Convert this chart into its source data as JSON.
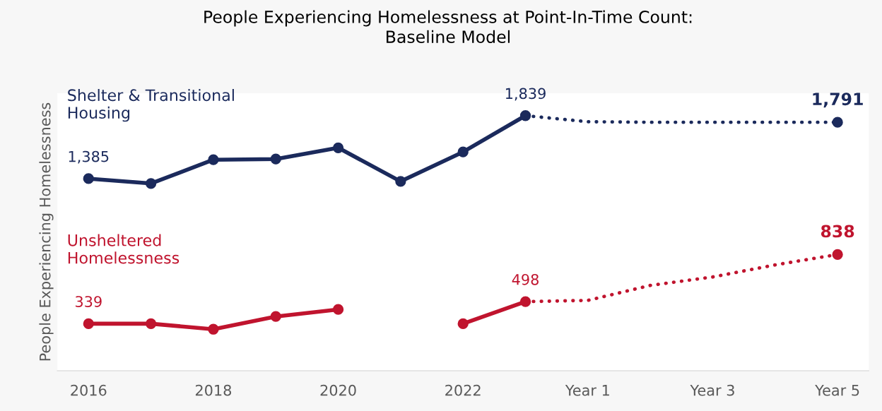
{
  "chart_data": {
    "type": "line",
    "title": "People Experiencing Homelessness at Point-In-Time Count:\nBaseline Model",
    "ylabel": "People Experiencing Homelessness",
    "categories": [
      "2016",
      null,
      "2018",
      null,
      "2020",
      null,
      "2022",
      null,
      "Year 1",
      null,
      "Year 3",
      null,
      "Year 5"
    ],
    "ylim": [
      0,
      2000
    ],
    "tick_labels": "x",
    "grid": false,
    "legend": false,
    "marker": "circle",
    "series": [
      {
        "name": "Shelter & Transitional\nHousing",
        "color": "#1b2a5c",
        "line_style": "solid",
        "values": [
          1385,
          1350,
          1521,
          1526,
          1607,
          1365,
          1577,
          1839,
          null,
          null,
          null,
          null,
          null
        ],
        "value_labels": [
          "1,385",
          null,
          null,
          null,
          null,
          null,
          null,
          "1,839",
          null,
          null,
          null,
          null,
          null
        ]
      },
      {
        "color": "#1b2a5c",
        "line_style": "dotted",
        "marker": "none",
        "values": [
          null,
          null,
          null,
          null,
          null,
          null,
          null,
          1839,
          1795,
          1791,
          1791,
          1791,
          1791
        ]
      },
      {
        "type": "scatter",
        "color": "#1b2a5c",
        "values": [
          null,
          null,
          null,
          null,
          null,
          null,
          null,
          null,
          null,
          null,
          null,
          null,
          1791
        ],
        "value_labels": [
          null,
          null,
          null,
          null,
          null,
          null,
          null,
          null,
          null,
          null,
          null,
          null,
          "1,791"
        ]
      },
      {
        "name": "Unsheltered\nHomelessness",
        "color": "#c0142e",
        "line_style": "solid",
        "values": [
          339,
          339,
          299,
          391,
          442,
          null,
          339,
          498,
          null,
          null,
          null,
          null,
          null
        ],
        "value_labels": [
          "339",
          null,
          null,
          null,
          null,
          null,
          null,
          "498",
          null,
          null,
          null,
          null,
          null
        ]
      },
      {
        "color": "#c0142e",
        "line_style": "dotted",
        "marker": "none",
        "values": [
          null,
          null,
          null,
          null,
          null,
          null,
          null,
          498,
          507,
          615,
          676,
          763,
          838
        ]
      },
      {
        "type": "scatter",
        "color": "#c0142e",
        "values": [
          null,
          null,
          null,
          null,
          null,
          null,
          null,
          null,
          null,
          null,
          null,
          null,
          838
        ],
        "value_labels": [
          null,
          null,
          null,
          null,
          null,
          null,
          null,
          null,
          null,
          null,
          null,
          null,
          "838"
        ]
      }
    ]
  }
}
